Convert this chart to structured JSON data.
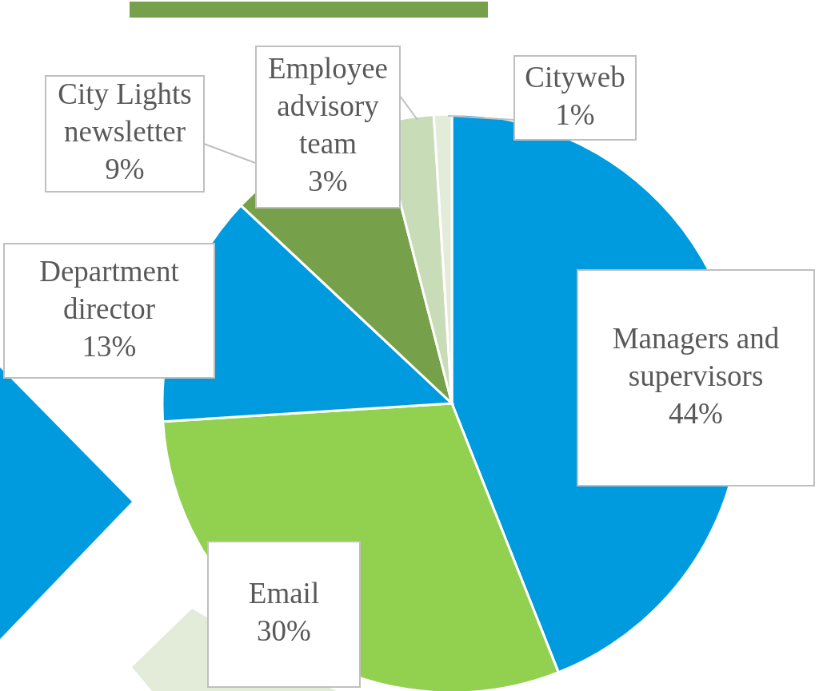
{
  "chart_data": {
    "type": "pie",
    "categories": [
      "Managers and supervisors",
      "Email",
      "Department director",
      "City Lights newsletter",
      "Employee advisory team",
      "Cityweb"
    ],
    "values": [
      44,
      30,
      13,
      9,
      3,
      1
    ],
    "colors": [
      "#009ade",
      "#92d050",
      "#009ade",
      "#77a04a",
      "#c9dcb8",
      "#e2ecd9"
    ],
    "value_labels": [
      "44%",
      "30%",
      "13%",
      "9%",
      "3%",
      "1%"
    ]
  }
}
